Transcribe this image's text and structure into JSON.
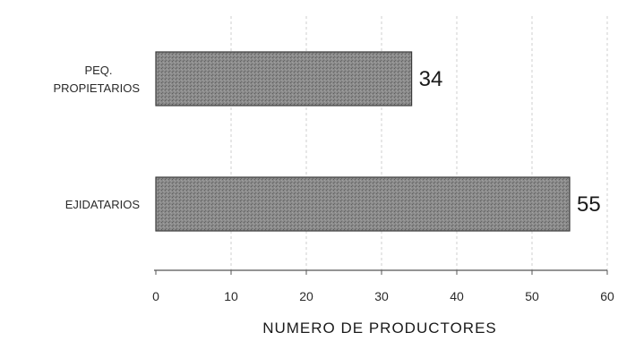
{
  "chart_data": {
    "type": "bar",
    "orientation": "horizontal",
    "categories": [
      [
        "PEQ.",
        "PROPIETARIOS"
      ],
      [
        "EJIDATARIOS"
      ]
    ],
    "values": [
      34,
      55
    ],
    "data_labels": [
      "34",
      "55"
    ],
    "xlabel": "NUMERO DE PRODUCTORES",
    "xlim": [
      0,
      60
    ],
    "xticks": [
      "0",
      "10",
      "20",
      "30",
      "40",
      "50",
      "60"
    ],
    "grid": true,
    "bar_color": "#7a7a7a"
  }
}
